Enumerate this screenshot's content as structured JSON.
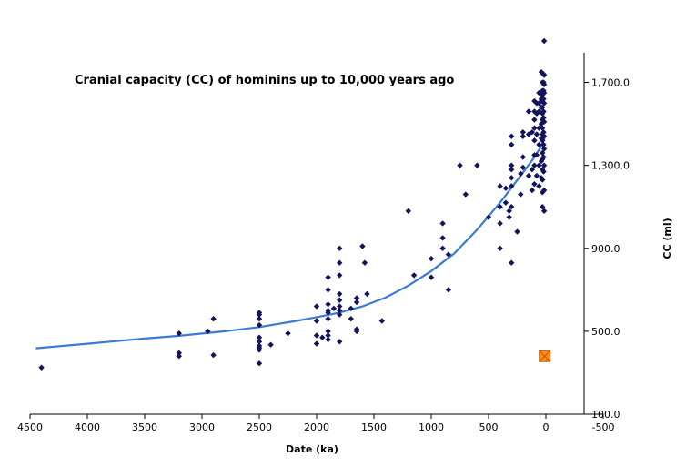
{
  "chart_data": {
    "type": "scatter",
    "title": "Cranial capacity (CC)  of hominins up to 10,000 years ago",
    "xlabel": "Date (ka)",
    "ylabel": "CC (ml)",
    "x_reversed": true,
    "xlim": [
      4500,
      -500
    ],
    "ylim": [
      100,
      1900
    ],
    "x_ticks": [
      4500,
      4000,
      3500,
      3000,
      2500,
      2000,
      1500,
      1000,
      500,
      0,
      -500
    ],
    "x_tick_labels": [
      "4500",
      "4000",
      "3500",
      "3000",
      "2500",
      "2000",
      "1500",
      "1000",
      "500",
      "0",
      "-500"
    ],
    "y_ticks": [
      100,
      500,
      900,
      1300,
      1700
    ],
    "y_tick_labels": [
      "100.0",
      "500.0",
      "900.0",
      "1,300.0",
      "1,700.0"
    ],
    "y_axis_position": "right",
    "grid": false,
    "legend": "none",
    "colors": {
      "points": "#14145a",
      "trend": "#3a7bd5",
      "marker_fill": "#ff8c1a",
      "marker_border": "#b85c00"
    },
    "series": [
      {
        "type": "scatter",
        "points": [
          [
            4400,
            325
          ],
          [
            3200,
            380
          ],
          [
            3200,
            395
          ],
          [
            3200,
            490
          ],
          [
            2950,
            500
          ],
          [
            2900,
            385
          ],
          [
            2900,
            560
          ],
          [
            2500,
            345
          ],
          [
            2500,
            410
          ],
          [
            2500,
            420
          ],
          [
            2500,
            430
          ],
          [
            2500,
            450
          ],
          [
            2500,
            470
          ],
          [
            2500,
            530
          ],
          [
            2500,
            560
          ],
          [
            2500,
            580
          ],
          [
            2500,
            590
          ],
          [
            2400,
            435
          ],
          [
            2250,
            490
          ],
          [
            2000,
            440
          ],
          [
            2000,
            480
          ],
          [
            2000,
            550
          ],
          [
            2000,
            620
          ],
          [
            1950,
            470
          ],
          [
            1900,
            460
          ],
          [
            1900,
            480
          ],
          [
            1900,
            500
          ],
          [
            1900,
            560
          ],
          [
            1900,
            590
          ],
          [
            1900,
            600
          ],
          [
            1900,
            630
          ],
          [
            1900,
            700
          ],
          [
            1900,
            760
          ],
          [
            1850,
            610
          ],
          [
            1800,
            450
          ],
          [
            1800,
            580
          ],
          [
            1800,
            600
          ],
          [
            1800,
            620
          ],
          [
            1800,
            650
          ],
          [
            1800,
            680
          ],
          [
            1800,
            770
          ],
          [
            1800,
            830
          ],
          [
            1800,
            900
          ],
          [
            1700,
            560
          ],
          [
            1700,
            610
          ],
          [
            1650,
            500
          ],
          [
            1650,
            510
          ],
          [
            1650,
            640
          ],
          [
            1650,
            660
          ],
          [
            1600,
            910
          ],
          [
            1580,
            830
          ],
          [
            1560,
            680
          ],
          [
            1430,
            550
          ],
          [
            1200,
            1080
          ],
          [
            1150,
            770
          ],
          [
            1000,
            760
          ],
          [
            1000,
            850
          ],
          [
            900,
            900
          ],
          [
            900,
            950
          ],
          [
            900,
            1020
          ],
          [
            850,
            700
          ],
          [
            850,
            870
          ],
          [
            750,
            1300
          ],
          [
            700,
            1160
          ],
          [
            600,
            1300
          ],
          [
            500,
            1050
          ],
          [
            400,
            900
          ],
          [
            400,
            1020
          ],
          [
            400,
            1100
          ],
          [
            400,
            1200
          ],
          [
            350,
            1120
          ],
          [
            350,
            1190
          ],
          [
            320,
            1050
          ],
          [
            320,
            1080
          ],
          [
            300,
            830
          ],
          [
            300,
            1100
          ],
          [
            300,
            1200
          ],
          [
            300,
            1240
          ],
          [
            300,
            1280
          ],
          [
            300,
            1300
          ],
          [
            300,
            1400
          ],
          [
            300,
            1440
          ],
          [
            250,
            980
          ],
          [
            220,
            1160
          ],
          [
            220,
            1260
          ],
          [
            200,
            1290
          ],
          [
            200,
            1340
          ],
          [
            200,
            1460
          ],
          [
            200,
            1440
          ],
          [
            150,
            1250
          ],
          [
            150,
            1450
          ],
          [
            150,
            1560
          ],
          [
            120,
            1180
          ],
          [
            120,
            1280
          ],
          [
            120,
            1460
          ],
          [
            100,
            1210
          ],
          [
            100,
            1300
          ],
          [
            100,
            1350
          ],
          [
            100,
            1420
          ],
          [
            100,
            1480
          ],
          [
            100,
            1520
          ],
          [
            100,
            1560
          ],
          [
            100,
            1610
          ],
          [
            80,
            1250
          ],
          [
            80,
            1350
          ],
          [
            80,
            1450
          ],
          [
            80,
            1550
          ],
          [
            80,
            1600
          ],
          [
            60,
            1200
          ],
          [
            60,
            1300
          ],
          [
            60,
            1400
          ],
          [
            60,
            1480
          ],
          [
            60,
            1560
          ],
          [
            60,
            1600
          ],
          [
            60,
            1650
          ],
          [
            40,
            1240
          ],
          [
            40,
            1320
          ],
          [
            40,
            1430
          ],
          [
            40,
            1500
          ],
          [
            40,
            1580
          ],
          [
            40,
            1620
          ],
          [
            40,
            1750
          ],
          [
            30,
            1100
          ],
          [
            30,
            1170
          ],
          [
            30,
            1230
          ],
          [
            30,
            1280
          ],
          [
            30,
            1330
          ],
          [
            30,
            1360
          ],
          [
            30,
            1420
          ],
          [
            30,
            1450
          ],
          [
            30,
            1480
          ],
          [
            30,
            1520
          ],
          [
            30,
            1550
          ],
          [
            30,
            1580
          ],
          [
            30,
            1610
          ],
          [
            30,
            1640
          ],
          [
            30,
            1660
          ],
          [
            30,
            1700
          ],
          [
            20,
            1270
          ],
          [
            20,
            1340
          ],
          [
            20,
            1400
          ],
          [
            20,
            1460
          ],
          [
            20,
            1530
          ],
          [
            20,
            1560
          ],
          [
            20,
            1620
          ],
          [
            20,
            1660
          ],
          [
            20,
            1700
          ],
          [
            20,
            1740
          ],
          [
            15,
            1900
          ],
          [
            15,
            1080
          ],
          [
            15,
            1180
          ],
          [
            15,
            1300
          ],
          [
            15,
            1380
          ],
          [
            15,
            1440
          ],
          [
            15,
            1510
          ],
          [
            15,
            1600
          ],
          [
            15,
            1650
          ],
          [
            15,
            1690
          ],
          [
            15,
            1735
          ]
        ]
      },
      {
        "type": "line",
        "points": [
          [
            4450,
            418
          ],
          [
            4000,
            440
          ],
          [
            3500,
            465
          ],
          [
            3200,
            478
          ],
          [
            2800,
            500
          ],
          [
            2500,
            520
          ],
          [
            2200,
            548
          ],
          [
            2000,
            568
          ],
          [
            1800,
            590
          ],
          [
            1600,
            620
          ],
          [
            1400,
            662
          ],
          [
            1200,
            720
          ],
          [
            1000,
            790
          ],
          [
            800,
            875
          ],
          [
            600,
            990
          ],
          [
            400,
            1120
          ],
          [
            200,
            1265
          ],
          [
            100,
            1340
          ],
          [
            50,
            1385
          ],
          [
            10,
            1430
          ]
        ]
      },
      {
        "type": "marker",
        "points": [
          [
            10,
            380
          ]
        ]
      }
    ]
  }
}
